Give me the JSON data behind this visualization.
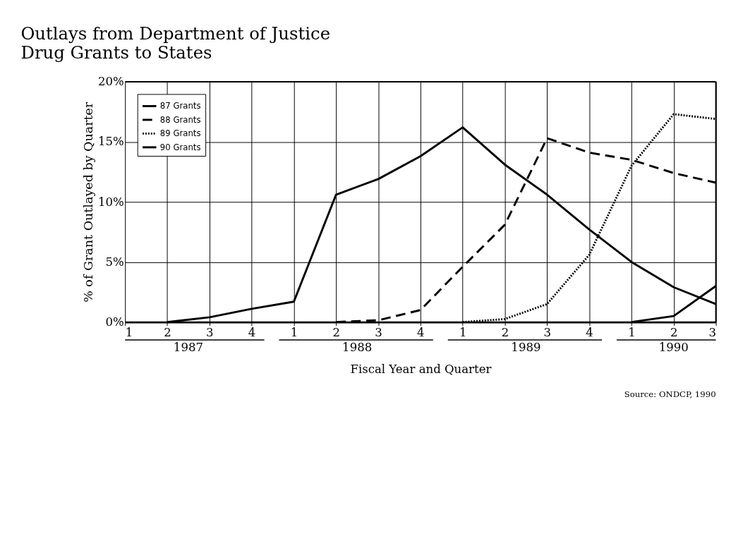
{
  "chart_data": {
    "type": "line",
    "title": "Outlays from Department of Justice\nDrug Grants to States",
    "xlabel": "Fiscal Year and Quarter",
    "ylabel": "% of Grant Outlayed by Quarter",
    "categories": [
      "1",
      "2",
      "3",
      "4",
      "1",
      "2",
      "3",
      "4",
      "1",
      "2",
      "3",
      "4",
      "1",
      "2",
      "3"
    ],
    "annotations": [
      "1987",
      "1988",
      "1989",
      "1990",
      "Source:  ONDCP, 1990"
    ],
    "series": [
      {
        "name": "87 Grants",
        "color": "#000000",
        "line_style": "solid",
        "values": [
          null,
          0,
          0.4,
          1.1,
          1.7,
          10.6,
          11.9,
          13.8,
          16.2,
          13.1,
          10.6,
          7.7,
          5.0,
          2.9,
          1.5
        ]
      },
      {
        "name": "88 Grants",
        "color": "#000000",
        "line_style": "dashed",
        "values": [
          null,
          null,
          null,
          null,
          null,
          0,
          0.15,
          1.0,
          4.6,
          8.1,
          15.3,
          14.1,
          13.5,
          12.4,
          11.6
        ]
      },
      {
        "name": "89 Grants",
        "color": "#000000",
        "line_style": "dotted",
        "values": [
          null,
          null,
          null,
          null,
          null,
          null,
          null,
          null,
          0,
          0.25,
          1.5,
          5.6,
          13.0,
          17.3,
          16.9
        ]
      },
      {
        "name": "90 Grants",
        "color": "#000000",
        "line_style": "solid",
        "values": [
          null,
          null,
          null,
          null,
          null,
          null,
          null,
          null,
          null,
          null,
          null,
          null,
          0,
          0.5,
          3.0
        ]
      }
    ],
    "ylim": [
      0,
      20
    ],
    "yticks": [
      {
        "value": 0,
        "label": "0%"
      },
      {
        "value": 5,
        "label": "5%"
      },
      {
        "value": 10,
        "label": "10%"
      },
      {
        "value": 15,
        "label": "15%"
      },
      {
        "value": 20,
        "label": "20%"
      }
    ],
    "grid": true,
    "legend": "top left",
    "marker": "none"
  }
}
